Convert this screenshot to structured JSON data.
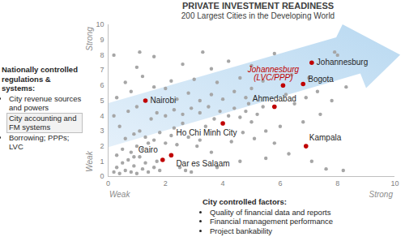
{
  "chart_data": {
    "type": "scatter",
    "title": "PRIVATE INVESTMENT READINESS",
    "subtitle": "200 Largest Cities in the Developing World",
    "x_axis_labels": {
      "low": "Weak",
      "high": "Strong"
    },
    "y_axis_labels": {
      "low": "Weak",
      "high": "Strong"
    },
    "xlim": [
      0,
      10
    ],
    "xticks": [
      0,
      2,
      4,
      6,
      8,
      10
    ],
    "ylim": [
      0,
      10
    ],
    "yticks": [
      0,
      1,
      2,
      3,
      4,
      5,
      6,
      7,
      8,
      9,
      10
    ],
    "points": {
      "color": "#a6a6a6",
      "x": [
        0.2,
        0.3,
        0.4,
        0.5,
        0.6,
        0.7,
        0.8,
        0.9,
        1.0,
        1.1,
        1.2,
        1.3,
        1.4,
        0.9,
        1.6,
        1.7,
        1.8,
        0.3,
        0.5,
        0.8,
        1.0,
        1.2,
        1.4,
        0.6,
        0.9,
        1.1,
        0.4,
        1.3,
        1.6,
        1.8,
        2.0,
        2.2,
        2.4,
        2.5,
        2.7,
        2.9,
        3.6,
        2.3,
        2.6,
        2.8,
        3.1,
        3.2,
        3.4,
        0.2,
        0.7,
        1.0,
        1.5,
        1.7,
        2.0,
        2.3,
        2.6,
        2.9,
        3.2,
        3.5,
        3.7,
        3.9,
        4.2,
        4.4,
        4.6,
        4.8,
        5.0,
        5.2,
        5.4,
        4.3,
        4.7,
        5.1,
        5.5,
        5.8,
        6.0,
        0.3,
        0.8,
        1.6,
        2.0,
        2.4,
        2.8,
        3.2,
        3.6,
        4.0,
        4.4,
        4.8,
        5.0,
        4.9,
        6.2,
        6.5,
        6.9,
        7.3,
        8.3,
        7.8,
        0.6,
        1.2,
        2.2,
        3.0,
        3.8,
        4.6,
        5.4,
        6.4,
        7.0,
        1.0,
        2.6,
        3.6,
        4.2,
        5.0,
        0.2,
        1.1,
        1.6,
        3.3,
        5.8,
        7.9,
        8.0,
        6.3,
        7.1,
        7.6,
        8.2,
        5.5,
        4.6,
        3.8,
        6.8,
        7.4
      ],
      "y": [
        0.3,
        0.6,
        0.2,
        0.9,
        0.4,
        1.1,
        0.3,
        0.7,
        0.2,
        1.3,
        0.5,
        0.9,
        0.3,
        1.3,
        0.6,
        1.0,
        0.4,
        1.4,
        1.8,
        1.6,
        2.0,
        1.8,
        2.2,
        2.5,
        2.8,
        3.0,
        3.3,
        2.6,
        2.4,
        2.9,
        2.2,
        2.7,
        2.1,
        0.6,
        0.4,
        0.3,
        1.6,
        3.2,
        3.5,
        2.6,
        2.0,
        2.4,
        3.3,
        4.0,
        4.3,
        4.6,
        3.8,
        4.2,
        4.0,
        4.4,
        4.1,
        4.5,
        4.2,
        4.6,
        3.8,
        4.3,
        4.0,
        4.5,
        3.9,
        4.3,
        3.6,
        4.1,
        4.6,
        2.3,
        2.9,
        2.5,
        3.0,
        2.2,
        3.3,
        5.2,
        5.6,
        5.9,
        5.8,
        5.1,
        5.5,
        5.0,
        5.4,
        5.1,
        5.6,
        5.2,
        5.8,
        4.8,
        5.4,
        4.8,
        5.2,
        5.6,
        5.9,
        5.0,
        6.2,
        6.6,
        6.3,
        6.4,
        6.2,
        6.5,
        6.3,
        6.7,
        6.5,
        7.2,
        7.4,
        7.1,
        7.6,
        7.3,
        8.0,
        8.2,
        7.9,
        8.2,
        8.1,
        8.2,
        8.0,
        1.5,
        1.0,
        0.5,
        0.4,
        1.2,
        1.0,
        0.6,
        3.6,
        4.1
      ]
    },
    "highlighted": {
      "color": "#c00000",
      "labels": [
        "Johannesburg",
        "Johannesburg\n(LVC/PPP)",
        "Bogota",
        "Ahmedabad",
        "Kampala",
        "Ho Chi Minh City",
        "Nairobi",
        "Cairo",
        "Dar es Salaam"
      ],
      "x": [
        7.1,
        6.1,
        6.8,
        5.8,
        6.9,
        4.0,
        1.3,
        1.9,
        2.2
      ],
      "y": [
        7.5,
        6.0,
        6.1,
        4.6,
        2.0,
        3.5,
        5.0,
        1.1,
        1.4
      ]
    },
    "annotations": [
      {
        "heading": "Nationally controlled regulations & systems:",
        "items": [
          "City revenue sources and powers",
          "City accounting and FM systems",
          "Borrowing; PPPs; LVC"
        ]
      },
      {
        "heading": "City controlled factors:",
        "items": [
          "Quality of financial data and reports",
          "Financial management performance",
          "Project bankability"
        ]
      }
    ]
  }
}
